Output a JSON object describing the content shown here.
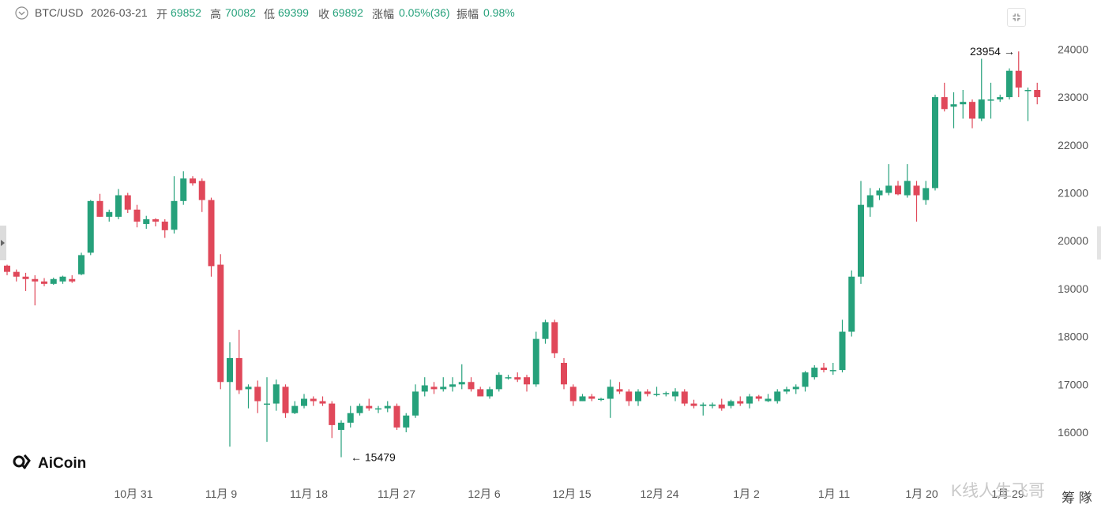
{
  "header": {
    "symbol": "BTC/USD",
    "date": "2026-03-21",
    "open_label": "开",
    "open": "69852",
    "high_label": "高",
    "high": "70082",
    "low_label": "低",
    "low": "69399",
    "close_label": "收",
    "close": "69892",
    "change_label": "涨幅",
    "change": "0.05%(36)",
    "amplitude_label": "振幅",
    "amplitude": "0.98%"
  },
  "logo": {
    "text": "AiCoin"
  },
  "watermark": {
    "text": "K线人生飞哥"
  },
  "corner": {
    "text": "筹 隊"
  },
  "colors": {
    "up": "#26a17b",
    "down": "#e0485a",
    "axis_text": "#555555"
  },
  "chart_data": {
    "type": "candlestick",
    "ylim": [
      15479,
      23954
    ],
    "y_ticks": [
      16000,
      17000,
      18000,
      19000,
      20000,
      21000,
      22000,
      23000,
      24000
    ],
    "x_tick_labels": [
      "10月 31",
      "11月 9",
      "11月 18",
      "11月 27",
      "12月 6",
      "12月 15",
      "12月 24",
      "1月 2",
      "1月 11",
      "1月 20",
      "1月 29"
    ],
    "annotations": [
      {
        "text": "23954",
        "value": 23954,
        "arrow": "→"
      },
      {
        "text": "15479",
        "value": 15479,
        "arrow": "←"
      }
    ],
    "candles": [
      [
        19480,
        19500,
        19280,
        19350
      ],
      [
        19350,
        19400,
        19150,
        19250
      ],
      [
        19250,
        19330,
        18950,
        19200
      ],
      [
        19200,
        19280,
        18650,
        19150
      ],
      [
        19150,
        19220,
        19050,
        19100
      ],
      [
        19100,
        19230,
        19080,
        19200
      ],
      [
        19150,
        19270,
        19100,
        19250
      ],
      [
        19200,
        19280,
        19120,
        19150
      ],
      [
        19300,
        19750,
        19280,
        19700
      ],
      [
        19750,
        20850,
        19700,
        20830
      ],
      [
        20830,
        20980,
        20500,
        20500
      ],
      [
        20500,
        20650,
        20400,
        20600
      ],
      [
        20500,
        21080,
        20450,
        20950
      ],
      [
        20950,
        21000,
        20580,
        20650
      ],
      [
        20650,
        20750,
        20280,
        20400
      ],
      [
        20350,
        20520,
        20250,
        20450
      ],
      [
        20450,
        20470,
        20300,
        20400
      ],
      [
        20400,
        20450,
        20060,
        20220
      ],
      [
        20230,
        21350,
        20150,
        20830
      ],
      [
        20830,
        21450,
        20750,
        21300
      ],
      [
        21300,
        21350,
        21150,
        21200
      ],
      [
        21250,
        21300,
        20600,
        20850
      ],
      [
        20850,
        20900,
        19250,
        19470
      ],
      [
        19500,
        19720,
        16900,
        17050
      ],
      [
        17050,
        17880,
        15700,
        17550
      ],
      [
        17550,
        18140,
        16800,
        16880
      ],
      [
        16900,
        17000,
        16500,
        16950
      ],
      [
        16950,
        17080,
        16400,
        16650
      ],
      [
        16600,
        17150,
        15800,
        16600
      ],
      [
        16600,
        17100,
        16450,
        17000
      ],
      [
        16950,
        17000,
        16300,
        16400
      ],
      [
        16400,
        16650,
        16380,
        16550
      ],
      [
        16550,
        16800,
        16500,
        16700
      ],
      [
        16700,
        16750,
        16550,
        16650
      ],
      [
        16650,
        16750,
        16550,
        16600
      ],
      [
        16600,
        16650,
        15880,
        16150
      ],
      [
        16050,
        16250,
        15479,
        16200
      ],
      [
        16200,
        16550,
        16100,
        16400
      ],
      [
        16400,
        16600,
        16350,
        16550
      ],
      [
        16550,
        16700,
        16450,
        16500
      ],
      [
        16500,
        16550,
        16400,
        16500
      ],
      [
        16500,
        16650,
        16420,
        16550
      ],
      [
        16550,
        16600,
        16050,
        16100
      ],
      [
        16100,
        16400,
        16000,
        16350
      ],
      [
        16350,
        17000,
        16300,
        16850
      ],
      [
        16850,
        17150,
        16750,
        16980
      ],
      [
        16950,
        17050,
        16800,
        16900
      ],
      [
        16900,
        17150,
        16850,
        16950
      ],
      [
        16950,
        17150,
        16850,
        17000
      ],
      [
        17000,
        17420,
        16900,
        17050
      ],
      [
        17050,
        17150,
        16850,
        16900
      ],
      [
        16900,
        16950,
        16750,
        16750
      ],
      [
        16750,
        16950,
        16700,
        16900
      ],
      [
        16900,
        17250,
        16850,
        17200
      ],
      [
        17150,
        17200,
        17100,
        17150
      ],
      [
        17150,
        17250,
        17050,
        17100
      ],
      [
        17150,
        17200,
        16850,
        17000
      ],
      [
        17000,
        18100,
        16950,
        17950
      ],
      [
        17950,
        18350,
        17850,
        18300
      ],
      [
        18300,
        18350,
        17550,
        17650
      ],
      [
        17450,
        17550,
        16900,
        17000
      ],
      [
        16950,
        17000,
        16550,
        16650
      ],
      [
        16650,
        16800,
        16650,
        16750
      ],
      [
        16750,
        16800,
        16650,
        16700
      ],
      [
        16700,
        16720,
        16650,
        16700
      ],
      [
        16700,
        17100,
        16300,
        16950
      ],
      [
        16900,
        17050,
        16800,
        16850
      ],
      [
        16850,
        16900,
        16550,
        16650
      ],
      [
        16650,
        16900,
        16550,
        16850
      ],
      [
        16850,
        16900,
        16750,
        16800
      ],
      [
        16800,
        16950,
        16750,
        16800
      ],
      [
        16800,
        16850,
        16750,
        16820
      ],
      [
        16750,
        16920,
        16650,
        16850
      ],
      [
        16850,
        16900,
        16550,
        16600
      ],
      [
        16600,
        16680,
        16500,
        16550
      ],
      [
        16550,
        16620,
        16350,
        16580
      ],
      [
        16550,
        16620,
        16500,
        16580
      ],
      [
        16580,
        16700,
        16450,
        16500
      ],
      [
        16550,
        16680,
        16500,
        16650
      ],
      [
        16650,
        16750,
        16550,
        16600
      ],
      [
        16600,
        16800,
        16500,
        16750
      ],
      [
        16750,
        16780,
        16650,
        16700
      ],
      [
        16650,
        16800,
        16630,
        16700
      ],
      [
        16650,
        16900,
        16600,
        16850
      ],
      [
        16850,
        16950,
        16800,
        16900
      ],
      [
        16900,
        17000,
        16800,
        16950
      ],
      [
        16950,
        17280,
        16850,
        17250
      ],
      [
        17150,
        17400,
        17100,
        17350
      ],
      [
        17350,
        17450,
        17250,
        17300
      ],
      [
        17300,
        17450,
        17200,
        17300
      ],
      [
        17300,
        18350,
        17250,
        18100
      ],
      [
        18100,
        19380,
        18000,
        19250
      ],
      [
        19250,
        21250,
        19100,
        20750
      ],
      [
        20700,
        21100,
        20500,
        20950
      ],
      [
        20950,
        21100,
        20850,
        21050
      ],
      [
        21000,
        21600,
        20950,
        21150
      ],
      [
        21150,
        21250,
        20950,
        20970
      ],
      [
        20950,
        21600,
        20900,
        21250
      ],
      [
        21150,
        21250,
        20400,
        20950
      ],
      [
        20850,
        21250,
        20750,
        21100
      ],
      [
        21100,
        23050,
        21050,
        23000
      ],
      [
        23000,
        23300,
        22700,
        22750
      ],
      [
        22800,
        23100,
        22350,
        22850
      ],
      [
        22850,
        23150,
        22550,
        22900
      ],
      [
        22900,
        22950,
        22350,
        22550
      ],
      [
        22550,
        23800,
        22500,
        22950
      ],
      [
        22950,
        23300,
        22550,
        22950
      ],
      [
        22950,
        23050,
        22900,
        23000
      ],
      [
        23000,
        23600,
        22950,
        23550
      ],
      [
        23550,
        23954,
        23000,
        23200
      ],
      [
        23150,
        23200,
        22500,
        23150
      ],
      [
        23150,
        23300,
        22850,
        23000
      ]
    ]
  }
}
